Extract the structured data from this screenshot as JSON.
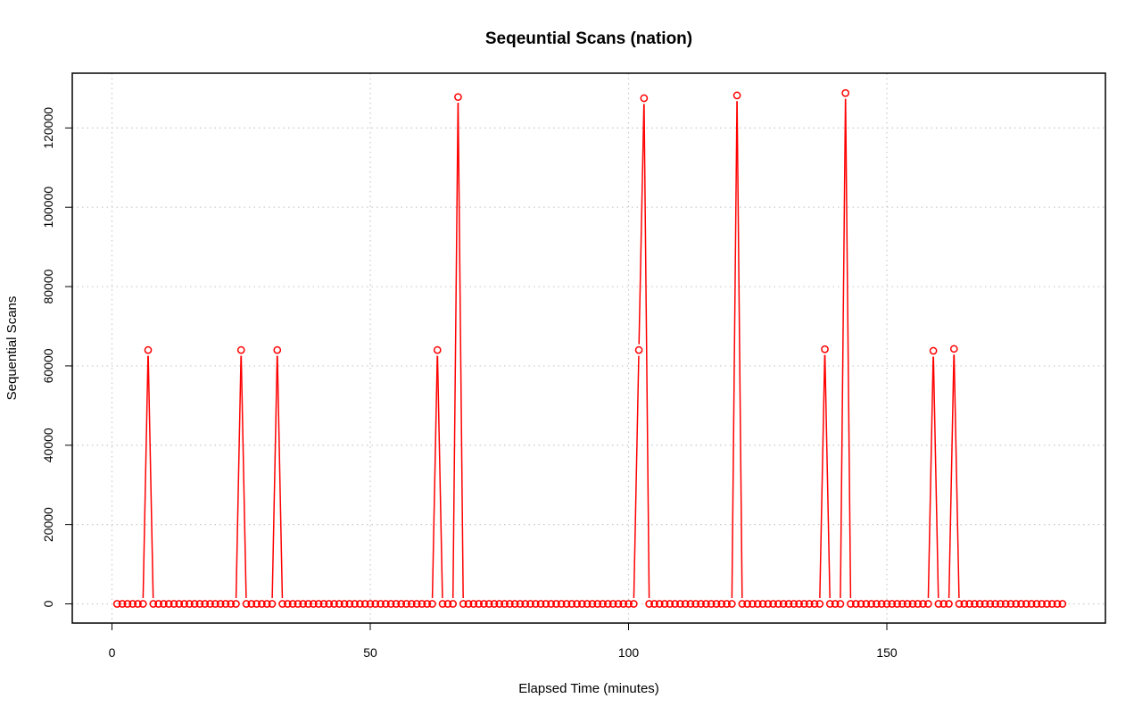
{
  "chart_data": {
    "type": "line",
    "title": "Seqeuntial Scans (nation)",
    "xlabel": "Elapsed Time (minutes)",
    "ylabel": "Sequential Scans",
    "xlim": [
      0,
      184
    ],
    "ylim": [
      0,
      128000
    ],
    "x_ticks": [
      0,
      50,
      100,
      150
    ],
    "y_ticks": [
      0,
      20000,
      40000,
      60000,
      80000,
      100000,
      120000
    ],
    "grid": true,
    "line_color": "#ff0000",
    "x_start": 1,
    "x_end": 184,
    "baseline_value": 0,
    "series": [
      {
        "peaks": [
          [
            7,
            64000
          ],
          [
            25,
            64000
          ],
          [
            32,
            64000
          ],
          [
            63,
            64000
          ],
          [
            67,
            127800
          ],
          [
            102,
            64000
          ],
          [
            103,
            127500
          ],
          [
            121,
            128200
          ],
          [
            138,
            64200
          ],
          [
            142,
            128800
          ],
          [
            159,
            63800
          ],
          [
            163,
            64300
          ]
        ]
      }
    ]
  }
}
